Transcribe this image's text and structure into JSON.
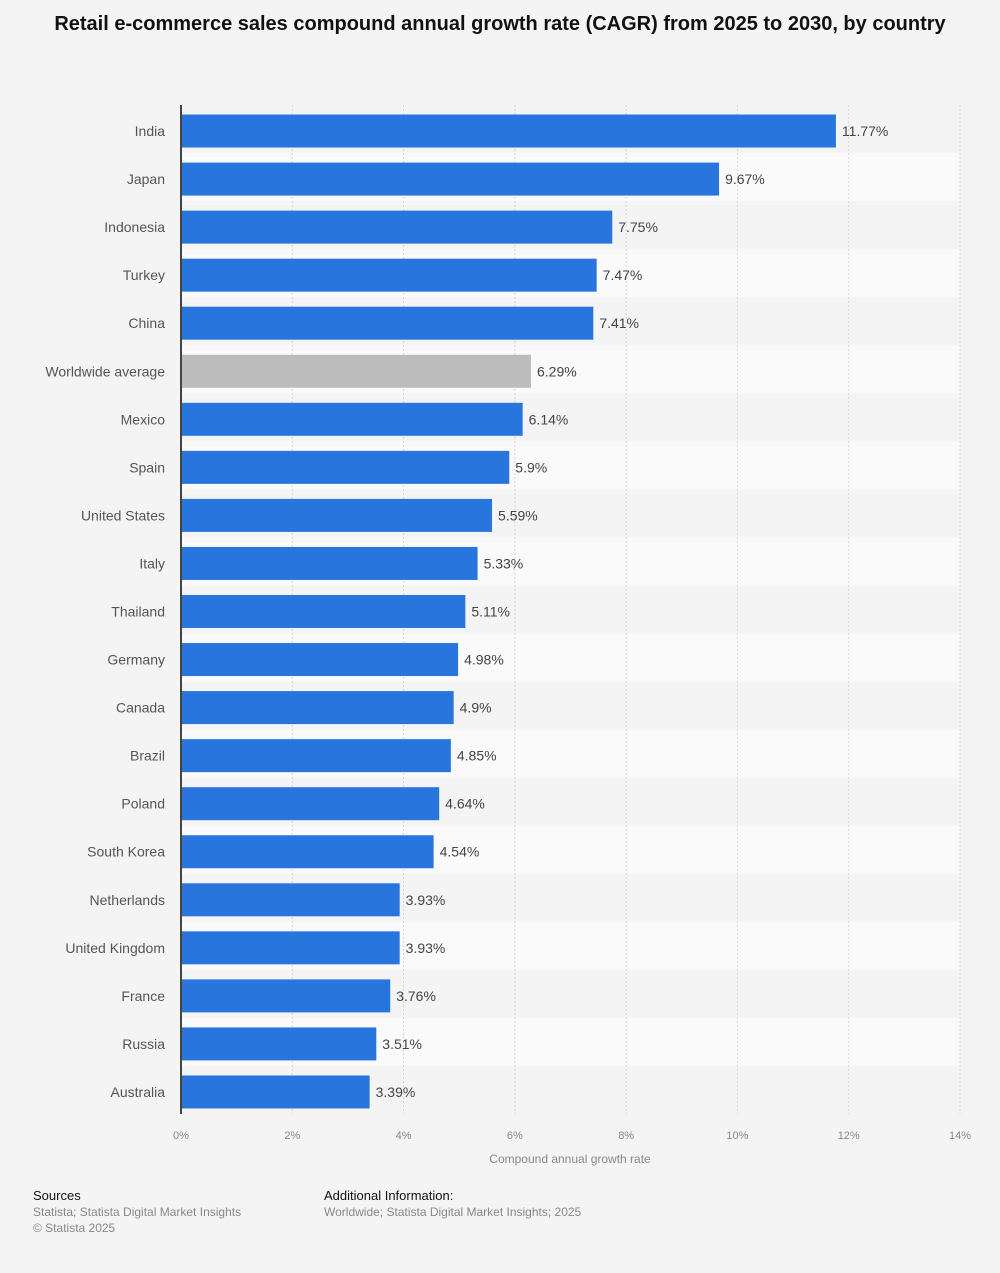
{
  "chart_data": {
    "type": "bar",
    "orientation": "horizontal",
    "title": "Retail e-commerce sales compound annual growth rate (CAGR) from 2025 to 2030, by country",
    "xlabel": "Compound annual growth rate",
    "ylabel": "",
    "xlim": [
      0,
      14
    ],
    "ticks": [
      "0%",
      "2%",
      "4%",
      "6%",
      "8%",
      "10%",
      "12%",
      "14%"
    ],
    "grid": true,
    "categories": [
      "India",
      "Japan",
      "Indonesia",
      "Turkey",
      "China",
      "Worldwide average",
      "Mexico",
      "Spain",
      "United States",
      "Italy",
      "Thailand",
      "Germany",
      "Canada",
      "Brazil",
      "Poland",
      "South Korea",
      "Netherlands",
      "United Kingdom",
      "France",
      "Russia",
      "Australia"
    ],
    "values": [
      11.77,
      9.67,
      7.75,
      7.47,
      7.41,
      6.29,
      6.14,
      5.9,
      5.59,
      5.33,
      5.11,
      4.98,
      4.9,
      4.85,
      4.64,
      4.54,
      3.93,
      3.93,
      3.76,
      3.51,
      3.39
    ],
    "data_labels": [
      "11.77%",
      "9.67%",
      "7.75%",
      "7.47%",
      "7.41%",
      "6.29%",
      "6.14%",
      "5.9%",
      "5.59%",
      "5.33%",
      "5.11%",
      "4.98%",
      "4.9%",
      "4.85%",
      "4.64%",
      "4.54%",
      "3.93%",
      "3.93%",
      "3.76%",
      "3.51%",
      "3.39%"
    ],
    "colors": {
      "bar": "#2876dd",
      "highlight": "#bcbcbc"
    },
    "highlight_category": "Worldwide average"
  },
  "footer": {
    "sources_heading": "Sources",
    "sources_text": "Statista; Statista Digital Market Insights",
    "copyright": "© Statista 2025",
    "additional_heading": "Additional Information:",
    "additional_text": "Worldwide; Statista Digital Market Insights; 2025"
  }
}
